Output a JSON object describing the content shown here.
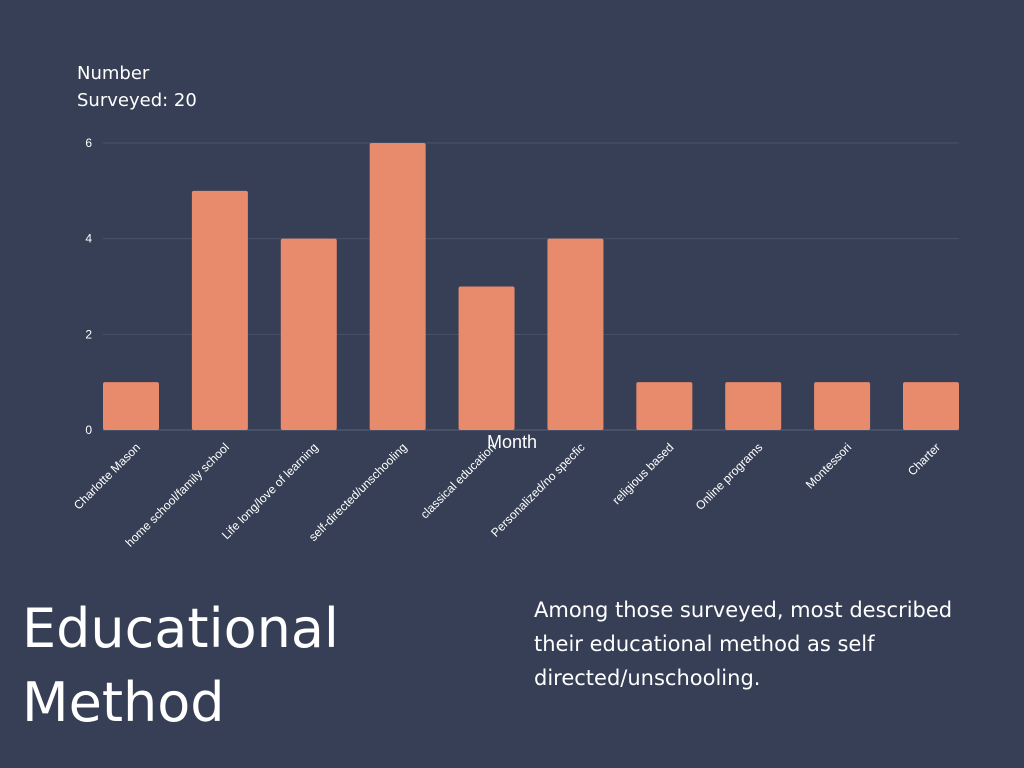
{
  "chart_data": {
    "type": "bar",
    "categories": [
      "Charlotte Mason",
      "home school/family school",
      "Life long/love of learning",
      "self-directed/unschooling",
      "classical education",
      "Personalized/no specfic",
      "religious based",
      "Online programs",
      "Montessori",
      "Charter"
    ],
    "values": [
      1,
      5,
      4,
      6,
      3,
      4,
      1,
      1,
      1,
      1
    ],
    "ylabel_line1": "Number",
    "ylabel_line2": "Surveyed: 20",
    "xlabel": "Month",
    "ylim": [
      0,
      6
    ],
    "yticks": [
      0,
      2,
      4,
      6
    ],
    "grid": true,
    "bar_color": "#e88a6c",
    "grid_color": "#4a5368",
    "background": "#363f55"
  },
  "slide": {
    "title_line1": "Educational",
    "title_line2": "Method",
    "caption": "Among those surveyed, most described their educational method as self directed/unschooling."
  }
}
